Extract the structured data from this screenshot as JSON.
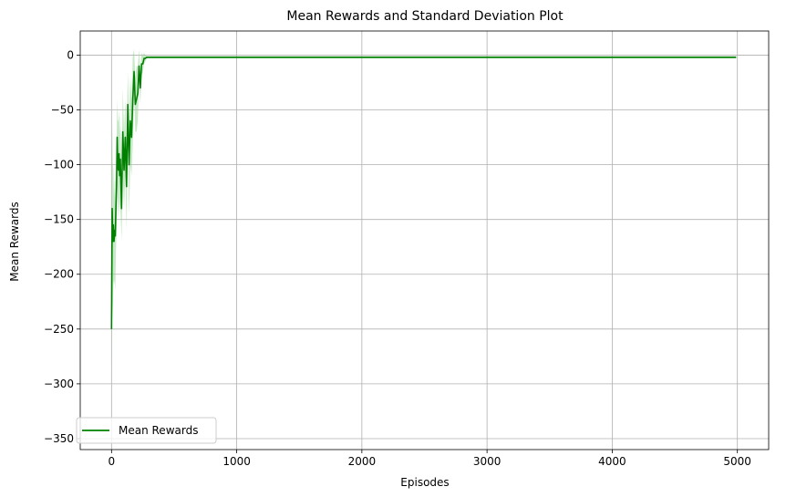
{
  "chart_data": {
    "type": "line",
    "title": "Mean Rewards and Standard Deviation Plot",
    "xlabel": "Episodes",
    "ylabel": "Mean Rewards",
    "xlim": [
      -250,
      5250
    ],
    "ylim": [
      -360,
      22
    ],
    "xticks": [
      0,
      1000,
      2000,
      3000,
      4000,
      5000
    ],
    "yticks": [
      0,
      -50,
      -100,
      -150,
      -200,
      -250,
      -300,
      -350
    ],
    "xtick_labels": [
      "0",
      "1000",
      "2000",
      "3000",
      "4000",
      "5000"
    ],
    "ytick_labels": [
      "0",
      "−50",
      "−100",
      "−150",
      "−200",
      "−250",
      "−300",
      "−350"
    ],
    "grid": true,
    "legend": {
      "placement": "lower-left"
    },
    "colors": {
      "line": "#008000",
      "band": "#90d490",
      "grid": "#b0b0b0"
    },
    "series": [
      {
        "name": "Mean Rewards",
        "x": [
          0,
          5,
          10,
          15,
          20,
          25,
          30,
          35,
          40,
          45,
          50,
          55,
          60,
          65,
          70,
          80,
          90,
          100,
          110,
          120,
          130,
          140,
          150,
          160,
          170,
          180,
          190,
          200,
          210,
          220,
          230,
          240,
          250,
          260,
          270,
          280,
          290,
          300,
          4990
        ],
        "y": [
          -250,
          -140,
          -170,
          -155,
          -170,
          -160,
          -165,
          -140,
          -120,
          -75,
          -100,
          -105,
          -90,
          -110,
          -95,
          -140,
          -70,
          -105,
          -75,
          -120,
          -45,
          -100,
          -60,
          -75,
          -40,
          -15,
          -45,
          -40,
          -35,
          -10,
          -30,
          -8,
          -8,
          -3,
          -3,
          -2,
          -2,
          -2,
          -2
        ],
        "std": [
          60,
          80,
          70,
          50,
          40,
          45,
          50,
          40,
          40,
          35,
          40,
          45,
          40,
          35,
          40,
          30,
          40,
          35,
          35,
          40,
          30,
          45,
          40,
          35,
          40,
          20,
          25,
          30,
          25,
          15,
          15,
          10,
          8,
          5,
          3,
          1,
          1,
          1,
          1
        ]
      }
    ]
  }
}
